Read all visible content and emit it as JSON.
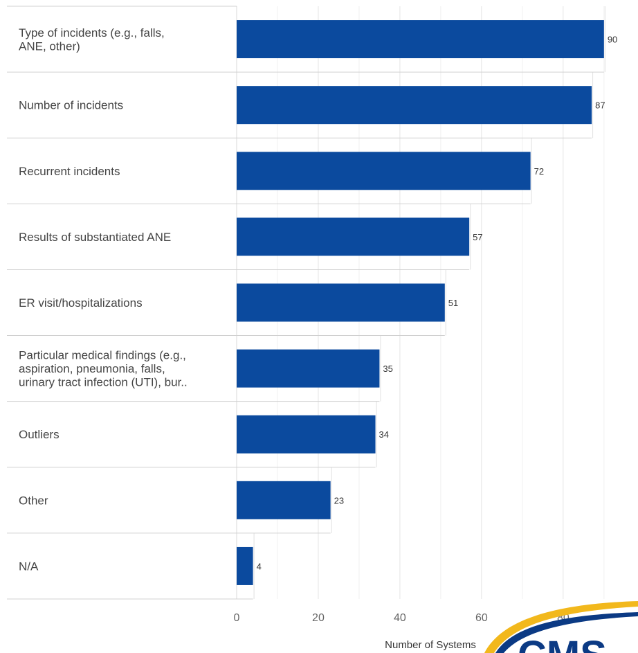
{
  "chart_data": {
    "type": "bar",
    "orientation": "horizontal",
    "categories": [
      [
        "Type of incidents (e.g., falls,",
        "ANE, other)"
      ],
      [
        "Number of incidents"
      ],
      [
        "Recurrent incidents"
      ],
      [
        "Results of substantiated ANE"
      ],
      [
        "ER visit/hospitalizations"
      ],
      [
        "Particular medical findings (e.g.,",
        "aspiration, pneumonia, falls,",
        "urinary tract infection (UTI), bur.."
      ],
      [
        "Outliers"
      ],
      [
        "Other"
      ],
      [
        "N/A"
      ]
    ],
    "values": [
      90,
      87,
      72,
      57,
      51,
      35,
      34,
      23,
      4
    ],
    "xlim": [
      0,
      98
    ],
    "xticks": [
      0,
      20,
      40,
      60,
      80
    ],
    "xlabel": "Number of Systems",
    "grid": true,
    "bar_color": "#0b4a9e"
  },
  "logo": {
    "text": "CMS",
    "color": "#0b3a84",
    "swoosh_color": "#f2b81c"
  }
}
